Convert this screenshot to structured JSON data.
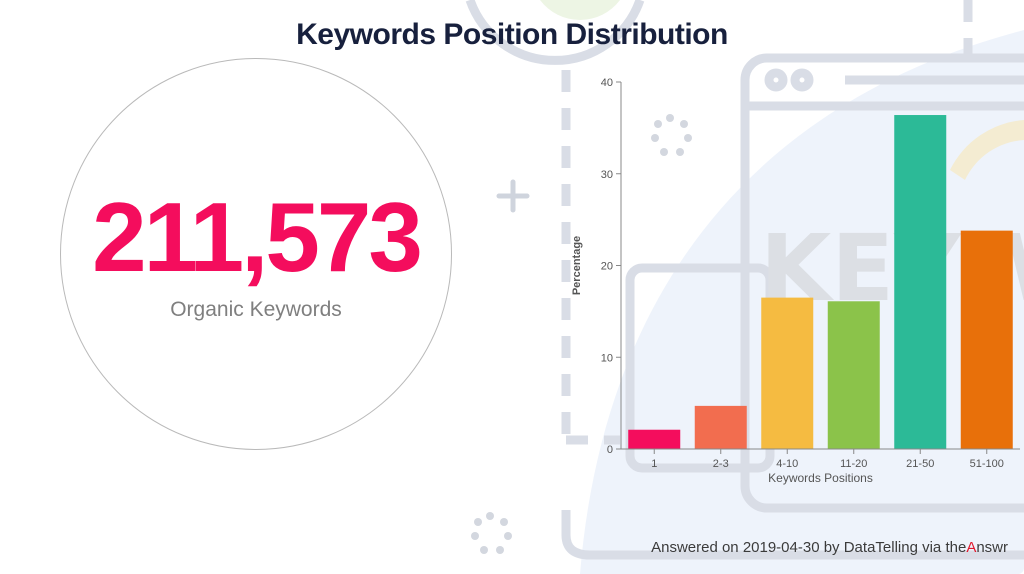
{
  "title": "Keywords Position Distribution",
  "kpi": {
    "value": "211,573",
    "label": "Organic Keywords"
  },
  "footer": {
    "prefix": "Answered on 2019-04-30 by DataTelling via ",
    "brand_start": "the",
    "brand_accent": "A",
    "brand_end": "nswr"
  },
  "colors": {
    "title": "#17203d",
    "kpi_value": "#f40d5d",
    "brand_accent": "#e2182d"
  },
  "chart_data": {
    "type": "bar",
    "title": "",
    "xlabel": "Keywords Positions",
    "ylabel": "Percentage",
    "ylim": [
      0,
      40
    ],
    "yticks": [
      0,
      10,
      20,
      30,
      40
    ],
    "categories": [
      "1",
      "2-3",
      "4-10",
      "11-20",
      "21-50",
      "51-100"
    ],
    "values": [
      2.1,
      4.7,
      16.5,
      16.1,
      36.4,
      23.8
    ],
    "colors": [
      "#f40d5d",
      "#f26d4f",
      "#f5bb41",
      "#8bc34a",
      "#2cba97",
      "#e8700a"
    ],
    "grid": false,
    "legend": "none"
  }
}
